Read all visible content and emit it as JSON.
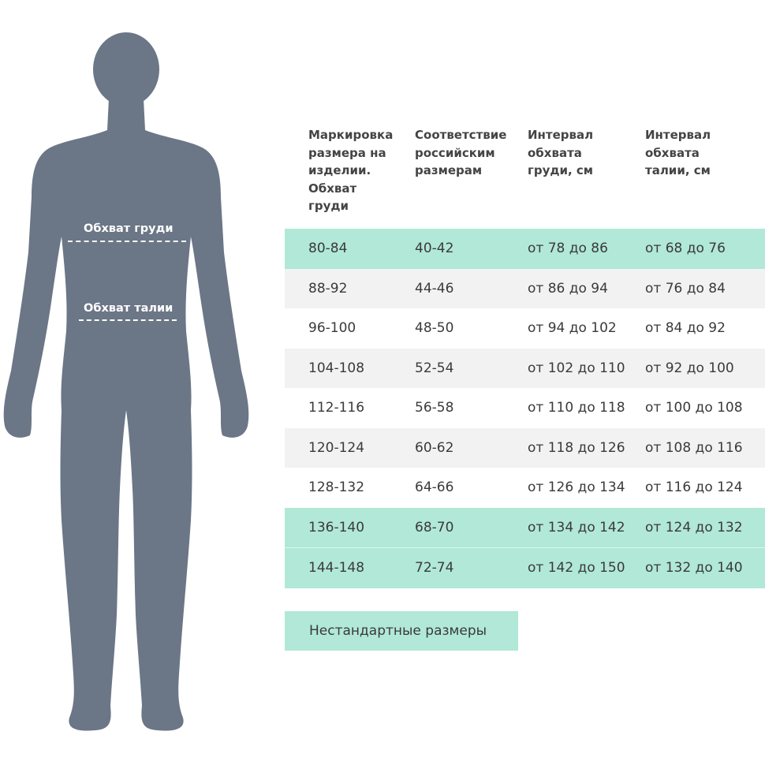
{
  "figure": {
    "chest_label": "Обхват груди",
    "waist_label": "Обхват талии",
    "silhouette_color": "#6b7686"
  },
  "table": {
    "headers": [
      "Маркировка размера на изделии. Обхват груди",
      "Соответствие российским размерам",
      "Интервал обхвата груди, см",
      "Интервал обхвата талии, см"
    ],
    "rows": [
      {
        "cells": [
          "80-84",
          "40-42",
          "от 78 до 86",
          "от 68 до 76"
        ],
        "style": "green"
      },
      {
        "cells": [
          "88-92",
          "44-46",
          "от 86 до 94",
          "от 76 до 84"
        ],
        "style": "gray"
      },
      {
        "cells": [
          "96-100",
          "48-50",
          "от 94 до 102",
          "от 84 до 92"
        ],
        "style": "white"
      },
      {
        "cells": [
          "104-108",
          "52-54",
          "от 102 до 110",
          "от 92 до 100"
        ],
        "style": "gray"
      },
      {
        "cells": [
          "112-116",
          "56-58",
          "от 110 до 118",
          "от 100 до 108"
        ],
        "style": "white"
      },
      {
        "cells": [
          "120-124",
          "60-62",
          "от 118 до 126",
          "от 108 до 116"
        ],
        "style": "gray"
      },
      {
        "cells": [
          "128-132",
          "64-66",
          "от 126 до 134",
          "от 116 до 124"
        ],
        "style": "white"
      },
      {
        "cells": [
          "136-140",
          "68-70",
          "от 134 до 142",
          "от 124 до 132"
        ],
        "style": "green"
      },
      {
        "cells": [
          "144-148",
          "72-74",
          "от 142 до 150",
          "от 132 до 140"
        ],
        "style": "green"
      }
    ],
    "accent_color": "#b1e8d8",
    "stripe_color": "#f2f2f2"
  },
  "nonstandard_button": "Нестандартные размеры"
}
